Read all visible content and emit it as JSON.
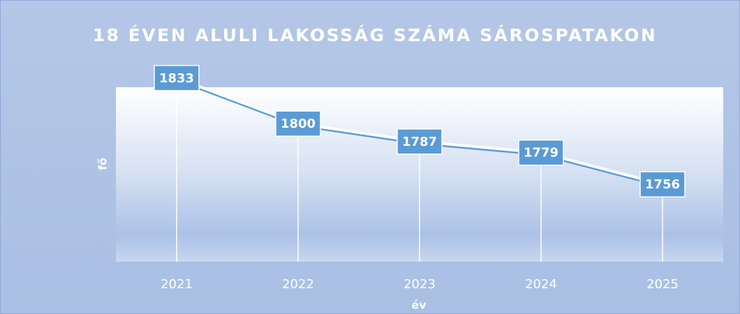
{
  "chart_data": {
    "type": "line",
    "title": "18 ÉVEN ALULI LAKOSSÁG SZÁMA SÁROSPATAKON",
    "x_label": "év",
    "y_label": "fő",
    "categories": [
      "2021",
      "2022",
      "2023",
      "2024",
      "2025"
    ],
    "values": [
      1833,
      1800,
      1787,
      1779,
      1756
    ],
    "color": "#5b9bd5",
    "ylim": [
      1700,
      1840
    ],
    "data_labels": true,
    "drop_lines": true
  }
}
